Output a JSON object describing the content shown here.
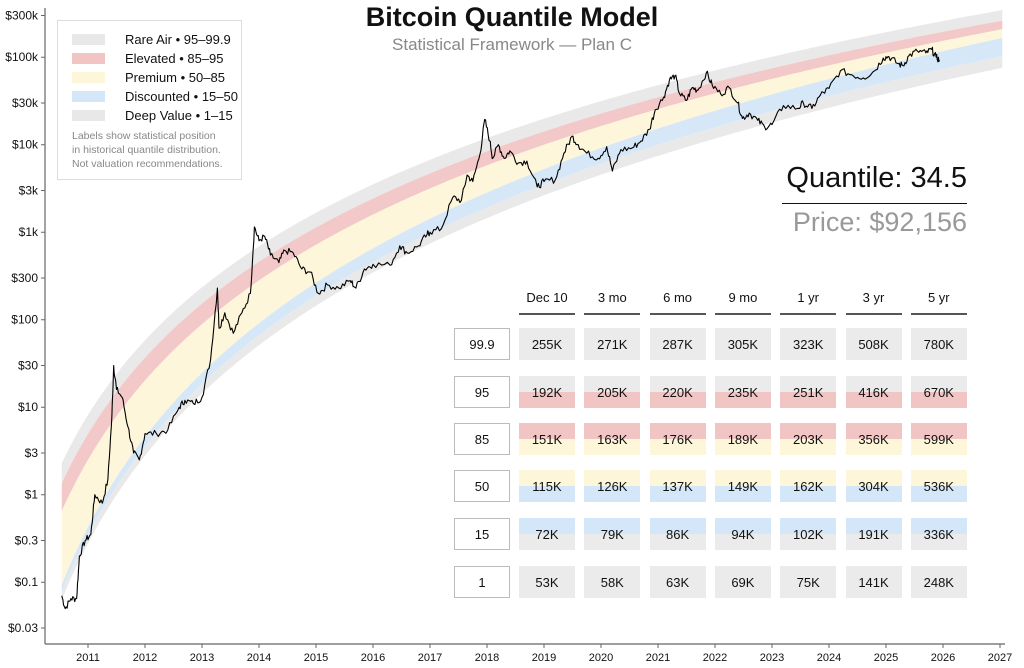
{
  "title": "Bitcoin Quantile Model",
  "subtitle": "Statistical Framework — Plan C",
  "legend": {
    "items": [
      {
        "label": "Rare Air • 95–99.9",
        "color": "#e8e8e8"
      },
      {
        "label": "Elevated • 85–95",
        "color": "#f2c5c5"
      },
      {
        "label": "Premium • 50–85",
        "color": "#fdf6d8"
      },
      {
        "label": "Discounted • 15–50",
        "color": "#d4e7f8"
      },
      {
        "label": "Deep Value • 1–15",
        "color": "#e8e8e8"
      }
    ],
    "note": [
      "Labels show statistical position",
      "in historical quantile distribution.",
      "Not valuation recommendations."
    ]
  },
  "readout": {
    "quantile": "Quantile: 34.5",
    "price": "Price: $92,156"
  },
  "table": {
    "columns": [
      "Dec 10",
      "3 mo",
      "6 mo",
      "9 mo",
      "1 yr",
      "3 yr",
      "5 yr"
    ],
    "rows": [
      {
        "quantile": "99.9",
        "values": [
          "255K",
          "271K",
          "287K",
          "305K",
          "323K",
          "508K",
          "780K"
        ],
        "top": "#ebebeb",
        "bottom": "#ebebeb"
      },
      {
        "quantile": "95",
        "values": [
          "192K",
          "205K",
          "220K",
          "235K",
          "251K",
          "416K",
          "670K"
        ],
        "top": "#ebebeb",
        "bottom": "#f2c5c5"
      },
      {
        "quantile": "85",
        "values": [
          "151K",
          "163K",
          "176K",
          "189K",
          "203K",
          "356K",
          "599K"
        ],
        "top": "#f2c5c5",
        "bottom": "#fdf6d8"
      },
      {
        "quantile": "50",
        "values": [
          "115K",
          "126K",
          "137K",
          "149K",
          "162K",
          "304K",
          "536K"
        ],
        "top": "#fdf6d8",
        "bottom": "#d4e7f8"
      },
      {
        "quantile": "15",
        "values": [
          "72K",
          "79K",
          "86K",
          "94K",
          "102K",
          "191K",
          "336K"
        ],
        "top": "#d4e7f8",
        "bottom": "#ebebeb"
      },
      {
        "quantile": "1",
        "values": [
          "53K",
          "58K",
          "63K",
          "69K",
          "75K",
          "141K",
          "248K"
        ],
        "top": "#ebebeb",
        "bottom": "#ebebeb"
      }
    ]
  },
  "chart_data": {
    "type": "line",
    "title": "Bitcoin Quantile Model",
    "subtitle": "Statistical Framework — Plan C",
    "y_scale": "log",
    "ylim": [
      0.02,
      300000
    ],
    "xlim": [
      2010.3,
      2027
    ],
    "x_ticks": [
      "2011",
      "2012",
      "2013",
      "2014",
      "2015",
      "2016",
      "2017",
      "2018",
      "2019",
      "2020",
      "2021",
      "2022",
      "2023",
      "2024",
      "2025",
      "2026",
      "2027"
    ],
    "y_ticks": [
      {
        "value": 300000,
        "label": "$300k"
      },
      {
        "value": 100000,
        "label": "$100k"
      },
      {
        "value": 30000,
        "label": "$30k"
      },
      {
        "value": 10000,
        "label": "$10k"
      },
      {
        "value": 3000,
        "label": "$3k"
      },
      {
        "value": 1000,
        "label": "$1k"
      },
      {
        "value": 300,
        "label": "$300"
      },
      {
        "value": 100,
        "label": "$100"
      },
      {
        "value": 30,
        "label": "$30"
      },
      {
        "value": 10,
        "label": "$10"
      },
      {
        "value": 3,
        "label": "$3"
      },
      {
        "value": 1,
        "label": "$1"
      },
      {
        "value": 0.3,
        "label": "$0.3"
      },
      {
        "value": 0.1,
        "label": "$0.1"
      },
      {
        "value": 0.03,
        "label": "$0.03"
      }
    ],
    "grid": false,
    "legend_position": "top-left",
    "bands": [
      {
        "quantile": 99.9,
        "value_2010_5": 2.3,
        "value_dec10_2025": 255000
      },
      {
        "quantile": 95,
        "value_2010_5": 1.36,
        "value_dec10_2025": 192000
      },
      {
        "quantile": 85,
        "value_2010_5": 0.65,
        "value_dec10_2025": 151000
      },
      {
        "quantile": 50,
        "value_2010_5": 0.093,
        "value_dec10_2025": 115000
      },
      {
        "quantile": 15,
        "value_2010_5": 0.078,
        "value_dec10_2025": 72000
      },
      {
        "quantile": 1,
        "value_2010_5": 0.063,
        "value_dec10_2025": 53000
      }
    ],
    "band_colors": [
      "#e8e8e8",
      "#f2c5c5",
      "#fdf6d8",
      "#d4e7f8",
      "#e8e8e8"
    ],
    "price_series": [
      [
        2010.54,
        0.07
      ],
      [
        2010.6,
        0.05
      ],
      [
        2010.7,
        0.065
      ],
      [
        2010.8,
        0.065
      ],
      [
        2010.85,
        0.2
      ],
      [
        2010.95,
        0.3
      ],
      [
        2011.05,
        0.35
      ],
      [
        2011.12,
        1.0
      ],
      [
        2011.25,
        0.8
      ],
      [
        2011.35,
        1.5
      ],
      [
        2011.42,
        8
      ],
      [
        2011.45,
        30
      ],
      [
        2011.5,
        16
      ],
      [
        2011.6,
        13
      ],
      [
        2011.7,
        6
      ],
      [
        2011.8,
        3
      ],
      [
        2011.9,
        2.5
      ],
      [
        2012.0,
        5
      ],
      [
        2012.2,
        5
      ],
      [
        2012.4,
        5.5
      ],
      [
        2012.6,
        10
      ],
      [
        2012.7,
        12
      ],
      [
        2012.85,
        11
      ],
      [
        2013.0,
        13
      ],
      [
        2013.15,
        35
      ],
      [
        2013.27,
        230
      ],
      [
        2013.3,
        80
      ],
      [
        2013.4,
        120
      ],
      [
        2013.55,
        70
      ],
      [
        2013.7,
        120
      ],
      [
        2013.85,
        200
      ],
      [
        2013.92,
        1150
      ],
      [
        2014.0,
        800
      ],
      [
        2014.1,
        900
      ],
      [
        2014.2,
        550
      ],
      [
        2014.35,
        450
      ],
      [
        2014.45,
        620
      ],
      [
        2014.6,
        580
      ],
      [
        2014.75,
        380
      ],
      [
        2014.9,
        350
      ],
      [
        2015.04,
        200
      ],
      [
        2015.2,
        250
      ],
      [
        2015.4,
        230
      ],
      [
        2015.6,
        280
      ],
      [
        2015.7,
        230
      ],
      [
        2015.85,
        380
      ],
      [
        2016.0,
        430
      ],
      [
        2016.3,
        420
      ],
      [
        2016.47,
        700
      ],
      [
        2016.6,
        580
      ],
      [
        2016.8,
        700
      ],
      [
        2016.95,
        950
      ],
      [
        2017.0,
        1000
      ],
      [
        2017.2,
        1100
      ],
      [
        2017.4,
        2500
      ],
      [
        2017.55,
        2300
      ],
      [
        2017.65,
        4500
      ],
      [
        2017.75,
        3800
      ],
      [
        2017.88,
        8000
      ],
      [
        2017.96,
        19500
      ],
      [
        2018.05,
        11000
      ],
      [
        2018.1,
        7000
      ],
      [
        2018.2,
        10000
      ],
      [
        2018.3,
        7000
      ],
      [
        2018.4,
        8500
      ],
      [
        2018.55,
        6200
      ],
      [
        2018.7,
        6500
      ],
      [
        2018.88,
        3300
      ],
      [
        2019.0,
        3800
      ],
      [
        2019.2,
        4000
      ],
      [
        2019.35,
        8000
      ],
      [
        2019.49,
        12500
      ],
      [
        2019.6,
        10000
      ],
      [
        2019.75,
        8000
      ],
      [
        2019.95,
        7000
      ],
      [
        2020.1,
        9500
      ],
      [
        2020.2,
        5000
      ],
      [
        2020.35,
        8800
      ],
      [
        2020.55,
        9200
      ],
      [
        2020.7,
        11000
      ],
      [
        2020.85,
        15000
      ],
      [
        2020.95,
        25000
      ],
      [
        2021.1,
        35000
      ],
      [
        2021.2,
        55000
      ],
      [
        2021.3,
        62000
      ],
      [
        2021.38,
        38000
      ],
      [
        2021.5,
        32000
      ],
      [
        2021.6,
        45000
      ],
      [
        2021.7,
        42000
      ],
      [
        2021.85,
        67000
      ],
      [
        2021.95,
        48000
      ],
      [
        2022.1,
        38000
      ],
      [
        2022.25,
        45000
      ],
      [
        2022.4,
        30000
      ],
      [
        2022.48,
        20000
      ],
      [
        2022.6,
        23000
      ],
      [
        2022.75,
        19000
      ],
      [
        2022.87,
        16000
      ],
      [
        2023.0,
        17000
      ],
      [
        2023.2,
        28000
      ],
      [
        2023.45,
        26000
      ],
      [
        2023.55,
        30000
      ],
      [
        2023.7,
        26000
      ],
      [
        2023.85,
        37000
      ],
      [
        2024.0,
        44000
      ],
      [
        2024.2,
        70000
      ],
      [
        2024.4,
        63000
      ],
      [
        2024.6,
        58000
      ],
      [
        2024.8,
        70000
      ],
      [
        2024.95,
        98000
      ],
      [
        2025.05,
        102000
      ],
      [
        2025.2,
        85000
      ],
      [
        2025.3,
        80000
      ],
      [
        2025.4,
        104000
      ],
      [
        2025.55,
        118000
      ],
      [
        2025.7,
        112000
      ],
      [
        2025.8,
        123000
      ],
      [
        2025.88,
        100000
      ],
      [
        2025.94,
        92156
      ]
    ]
  }
}
